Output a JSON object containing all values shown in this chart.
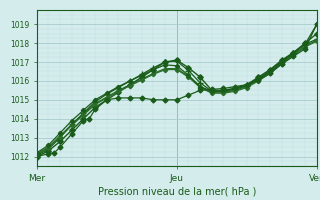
{
  "title": "",
  "xlabel": "Pression niveau de la mer( hPa )",
  "bg_color": "#d4ecec",
  "grid_color_major": "#a8cccc",
  "grid_color_minor": "#c0dede",
  "line_color": "#1a5c1a",
  "ylim": [
    1011.5,
    1019.5
  ],
  "xlim": [
    0,
    96
  ],
  "x_ticks": [
    0,
    48,
    96
  ],
  "x_tick_labels": [
    "Mer",
    "Jeu",
    "Ven"
  ],
  "vline_positions": [
    48,
    96
  ],
  "series": [
    {
      "x": [
        0,
        4,
        8,
        12,
        16,
        20,
        24,
        28,
        32,
        36,
        40,
        44,
        48,
        52,
        56,
        60,
        64,
        68,
        72,
        76,
        80,
        84,
        88,
        92,
        96
      ],
      "y": [
        1012.0,
        1012.3,
        1012.8,
        1013.4,
        1014.0,
        1014.6,
        1015.0,
        1015.4,
        1015.8,
        1016.2,
        1016.6,
        1017.0,
        1017.1,
        1016.7,
        1016.2,
        1015.5,
        1015.5,
        1015.6,
        1015.8,
        1016.2,
        1016.6,
        1017.1,
        1017.5,
        1018.0,
        1018.5
      ],
      "marker": "D",
      "lw": 1.0,
      "ms": 2.8,
      "color": "#1a5c1a"
    },
    {
      "x": [
        0,
        4,
        8,
        12,
        16,
        20,
        24,
        28,
        32,
        36,
        40,
        44,
        48,
        52,
        56,
        60,
        64,
        68,
        72,
        76,
        80,
        84,
        88,
        92,
        96
      ],
      "y": [
        1012.05,
        1012.4,
        1013.0,
        1013.7,
        1014.3,
        1014.9,
        1015.3,
        1015.65,
        1016.0,
        1016.35,
        1016.7,
        1017.0,
        1017.05,
        1016.55,
        1015.9,
        1015.45,
        1015.45,
        1015.55,
        1015.75,
        1016.1,
        1016.5,
        1017.0,
        1017.45,
        1017.95,
        1018.2
      ],
      "marker": "+",
      "lw": 0.9,
      "ms": 4.5,
      "color": "#1a5c1a"
    },
    {
      "x": [
        0,
        4,
        8,
        12,
        16,
        20,
        24,
        28,
        32,
        36,
        40,
        44,
        48,
        52,
        56,
        60,
        64,
        68,
        72,
        76,
        80,
        84,
        88,
        92,
        96
      ],
      "y": [
        1012.1,
        1012.45,
        1013.05,
        1013.65,
        1014.2,
        1014.75,
        1015.1,
        1015.45,
        1015.75,
        1016.05,
        1016.35,
        1016.6,
        1016.6,
        1016.2,
        1015.65,
        1015.35,
        1015.35,
        1015.45,
        1015.65,
        1016.0,
        1016.4,
        1016.9,
        1017.35,
        1017.8,
        1018.1
      ],
      "marker": "D",
      "lw": 0.9,
      "ms": 2.2,
      "color": "#2a6e2a"
    },
    {
      "x": [
        0,
        4,
        8,
        12,
        16,
        20,
        24,
        28,
        32,
        36,
        40,
        44,
        48,
        52,
        56,
        60,
        64,
        68,
        72,
        76,
        80,
        84,
        88,
        92,
        96
      ],
      "y": [
        1012.15,
        1012.5,
        1013.1,
        1013.7,
        1014.25,
        1014.8,
        1015.15,
        1015.5,
        1015.8,
        1016.1,
        1016.4,
        1016.65,
        1016.65,
        1016.25,
        1015.7,
        1015.4,
        1015.4,
        1015.5,
        1015.7,
        1016.05,
        1016.45,
        1016.95,
        1017.4,
        1017.85,
        1018.15
      ],
      "marker": null,
      "lw": 0.9,
      "ms": 0,
      "color": "#2a6e2a"
    },
    {
      "x": [
        0,
        4,
        6,
        8,
        12,
        16,
        18,
        20,
        24,
        28,
        32,
        36,
        40,
        44,
        48,
        52,
        56,
        60,
        64,
        68,
        72,
        76,
        80,
        84,
        88,
        92,
        96
      ],
      "y": [
        1012.0,
        1012.15,
        1012.2,
        1012.5,
        1013.2,
        1013.9,
        1014.0,
        1014.5,
        1015.0,
        1015.1,
        1015.1,
        1015.1,
        1015.0,
        1015.0,
        1015.0,
        1015.25,
        1015.5,
        1015.55,
        1015.6,
        1015.7,
        1015.8,
        1016.05,
        1016.4,
        1016.9,
        1017.3,
        1017.7,
        1019.0
      ],
      "marker": "D",
      "lw": 0.9,
      "ms": 2.5,
      "color": "#1a5c1a"
    },
    {
      "x": [
        0,
        4,
        8,
        12,
        16,
        20,
        24,
        28,
        32,
        36,
        40,
        44,
        48,
        52,
        56,
        60,
        64,
        68,
        72,
        76,
        80,
        84,
        88,
        92,
        96
      ],
      "y": [
        1012.2,
        1012.6,
        1013.25,
        1013.9,
        1014.45,
        1015.0,
        1015.35,
        1015.7,
        1016.0,
        1016.3,
        1016.6,
        1016.85,
        1016.8,
        1016.3,
        1015.7,
        1015.45,
        1015.5,
        1015.6,
        1015.8,
        1016.15,
        1016.55,
        1017.05,
        1017.5,
        1017.95,
        1019.0
      ],
      "marker": "D",
      "lw": 0.9,
      "ms": 2.2,
      "color": "#1a5c1a"
    }
  ]
}
